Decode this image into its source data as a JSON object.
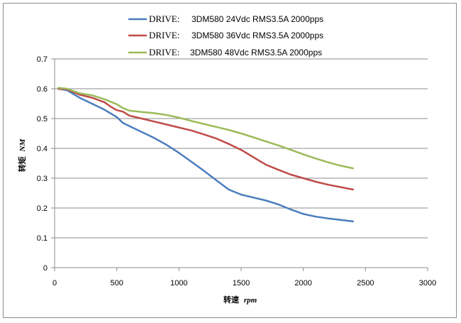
{
  "chart_data": {
    "type": "line",
    "title": "",
    "xlabel": "转速",
    "xlabel_unit": "rpm",
    "ylabel": "转矩",
    "ylabel_unit": "NM",
    "xlim": [
      0,
      3000
    ],
    "ylim": [
      0,
      0.7
    ],
    "xticks": [
      "0",
      "500",
      "1000",
      "1500",
      "2000",
      "2500",
      "3000"
    ],
    "yticks": [
      "0",
      "0.1",
      "0.2",
      "0.3",
      "0.4",
      "0.5",
      "0.6",
      "0.7"
    ],
    "grid": "horizontal",
    "legend_position": "top",
    "legend_prefix": "DRIVE:",
    "series": [
      {
        "name": "3DM580 24Vdc RMS3.5A 2000pps",
        "color": "#4a7dbd",
        "x": [
          30,
          100,
          200,
          300,
          400,
          500,
          550,
          600,
          700,
          800,
          900,
          1000,
          1100,
          1200,
          1300,
          1400,
          1500,
          1600,
          1700,
          1800,
          1900,
          2000,
          2100,
          2200,
          2300,
          2400
        ],
        "y": [
          0.6,
          0.595,
          0.57,
          0.55,
          0.53,
          0.505,
          0.485,
          0.475,
          0.455,
          0.435,
          0.412,
          0.385,
          0.355,
          0.325,
          0.293,
          0.262,
          0.245,
          0.235,
          0.225,
          0.212,
          0.195,
          0.18,
          0.171,
          0.165,
          0.16,
          0.155
        ]
      },
      {
        "name": "3DM580 36Vdc RMS3.5A 2000pps",
        "color": "#bf4b48",
        "x": [
          30,
          100,
          200,
          300,
          400,
          450,
          500,
          550,
          600,
          700,
          800,
          900,
          1000,
          1100,
          1200,
          1300,
          1400,
          1500,
          1600,
          1700,
          1800,
          1900,
          2000,
          2100,
          2200,
          2300,
          2400
        ],
        "y": [
          0.6,
          0.598,
          0.58,
          0.57,
          0.555,
          0.54,
          0.528,
          0.523,
          0.51,
          0.5,
          0.49,
          0.48,
          0.47,
          0.46,
          0.447,
          0.433,
          0.415,
          0.395,
          0.37,
          0.345,
          0.328,
          0.312,
          0.3,
          0.288,
          0.278,
          0.27,
          0.262
        ]
      },
      {
        "name": "3DM580 48Vdc RMS3.5A 2000pps",
        "color": "#9bbb59",
        "x": [
          30,
          100,
          200,
          300,
          400,
          500,
          550,
          600,
          700,
          800,
          900,
          1000,
          1100,
          1200,
          1300,
          1400,
          1500,
          1600,
          1700,
          1800,
          1900,
          2000,
          2100,
          2200,
          2300,
          2400
        ],
        "y": [
          0.603,
          0.6,
          0.585,
          0.578,
          0.565,
          0.548,
          0.535,
          0.527,
          0.522,
          0.518,
          0.512,
          0.503,
          0.492,
          0.482,
          0.472,
          0.462,
          0.45,
          0.437,
          0.423,
          0.41,
          0.395,
          0.38,
          0.366,
          0.353,
          0.342,
          0.333
        ]
      }
    ]
  }
}
